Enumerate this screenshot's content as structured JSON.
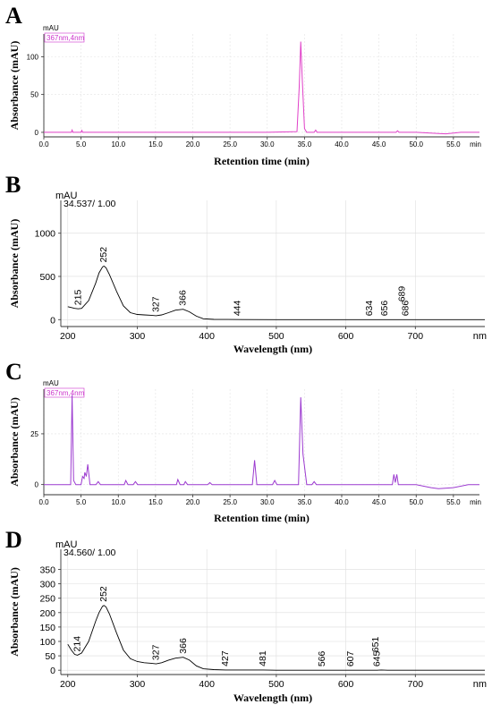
{
  "chart_data": [
    {
      "panel": "A",
      "type": "line",
      "xlabel": "Retention time (min)",
      "ylabel": "Absorbance (mAU)",
      "y_unit": "mAU",
      "x_unit": "min",
      "badge": "367nm,4nm",
      "xlim": [
        0,
        58.5
      ],
      "ylim": [
        -6,
        130
      ],
      "x_ticks": [
        0.0,
        5.0,
        10.0,
        15.0,
        20.0,
        25.0,
        30.0,
        35.0,
        40.0,
        45.0,
        50.0,
        55.0
      ],
      "x_tick_labels": [
        "0.0",
        "5.0",
        "10.0",
        "15.0",
        "20.0",
        "25.0",
        "30.0",
        "35.0",
        "40.0",
        "45.0",
        "50.0",
        "55.0"
      ],
      "y_ticks": [
        0,
        50,
        100
      ],
      "y_tick_labels": [
        "0",
        "50",
        "100"
      ],
      "color": "#e040c8",
      "series": [
        {
          "x": [
            0,
            3.7,
            3.8,
            3.9,
            5.0,
            5.1,
            5.2,
            10,
            20,
            30,
            34.0,
            34.3,
            34.5,
            34.7,
            35.0,
            35.3,
            36.3,
            36.5,
            36.7,
            40,
            47.3,
            47.5,
            47.7,
            50,
            53,
            54,
            55,
            56,
            58.5
          ],
          "y": [
            0,
            0,
            3,
            0,
            0,
            2.5,
            0,
            0,
            0,
            0,
            1,
            60,
            120,
            70,
            5,
            0,
            0,
            3,
            0,
            0,
            0,
            2,
            0,
            0,
            -1.5,
            -2,
            -1,
            0,
            0
          ]
        }
      ]
    },
    {
      "panel": "B",
      "type": "line",
      "xlabel": "Wavelength (nm)",
      "ylabel": "Absorbance (mAU)",
      "y_unit": "mAU",
      "x_unit": "nm",
      "header": "34.537/ 1.00",
      "xlim": [
        190,
        800
      ],
      "ylim": [
        -80,
        1380
      ],
      "x_ticks": [
        200,
        300,
        400,
        500,
        600,
        700
      ],
      "x_tick_labels": [
        "200",
        "300",
        "400",
        "500",
        "600",
        "700"
      ],
      "y_ticks": [
        0,
        500,
        1000
      ],
      "y_tick_labels": [
        "0",
        "500",
        "1000"
      ],
      "color": "#000000",
      "series": [
        {
          "x": [
            200,
            210,
            215,
            220,
            230,
            240,
            245,
            250,
            252,
            255,
            260,
            270,
            280,
            290,
            300,
            310,
            320,
            327,
            335,
            345,
            355,
            366,
            375,
            385,
            395,
            410,
            430,
            450,
            500,
            600,
            700,
            800
          ],
          "y": [
            150,
            130,
            125,
            130,
            220,
            420,
            540,
            610,
            620,
            600,
            520,
            330,
            160,
            80,
            60,
            55,
            50,
            45,
            55,
            80,
            110,
            120,
            90,
            40,
            10,
            3,
            2,
            1,
            0,
            0,
            0,
            0
          ]
        }
      ],
      "peak_labels": [
        {
          "x": 215,
          "text": "215"
        },
        {
          "x": 252,
          "text": "252"
        },
        {
          "x": 327,
          "text": "327"
        },
        {
          "x": 366,
          "text": "366"
        },
        {
          "x": 444,
          "text": "444"
        },
        {
          "x": 634,
          "text": "634"
        },
        {
          "x": 656,
          "text": "656"
        },
        {
          "x": 686,
          "text": "686"
        },
        {
          "x": 689,
          "text": "689"
        }
      ]
    },
    {
      "panel": "C",
      "type": "line",
      "xlabel": "Retention time (min)",
      "ylabel": "Absorbance (mAU)",
      "y_unit": "mAU",
      "x_unit": "min",
      "badge": "367nm,4nm",
      "xlim": [
        0,
        58.5
      ],
      "ylim": [
        -5,
        47
      ],
      "x_ticks": [
        0.0,
        5.0,
        10.0,
        15.0,
        20.0,
        25.0,
        30.0,
        35.0,
        40.0,
        45.0,
        50.0,
        55.0
      ],
      "x_tick_labels": [
        "0.0",
        "5.0",
        "10.0",
        "15.0",
        "20.0",
        "25.0",
        "30.0",
        "35.0",
        "40.0",
        "45.0",
        "50.0",
        "55.0"
      ],
      "y_ticks": [
        0,
        25
      ],
      "y_tick_labels": [
        "0",
        "25"
      ],
      "color": "#9c3ad0",
      "series": [
        {
          "x": [
            0,
            3.6,
            3.8,
            4.0,
            4.3,
            5.0,
            5.2,
            5.4,
            5.5,
            5.7,
            5.9,
            6.2,
            7.0,
            7.3,
            7.6,
            10.8,
            11.0,
            11.3,
            12.0,
            12.3,
            12.6,
            17.8,
            18.0,
            18.3,
            18.8,
            19.0,
            19.3,
            22.0,
            22.3,
            22.6,
            28.0,
            28.3,
            28.6,
            30.7,
            31.0,
            31.3,
            34.2,
            34.5,
            34.8,
            35.3,
            36.0,
            36.3,
            36.6,
            40,
            46.8,
            47.0,
            47.2,
            47.4,
            47.6,
            48.0,
            50,
            52,
            53,
            55,
            57,
            58.5
          ],
          "y": [
            0,
            0,
            44,
            2,
            0,
            0,
            4,
            3,
            6,
            4,
            10,
            0,
            0,
            1.5,
            0,
            0,
            2,
            0,
            0,
            1.5,
            0,
            0,
            2.5,
            0,
            0,
            1.5,
            0,
            0,
            1,
            0,
            0,
            12,
            0,
            0,
            2,
            0,
            0,
            43,
            15,
            0,
            0,
            1.5,
            0,
            0,
            0,
            5,
            1,
            5,
            0,
            0,
            0,
            -1.5,
            -2,
            -1.5,
            0,
            0
          ]
        }
      ]
    },
    {
      "panel": "D",
      "type": "line",
      "xlabel": "Wavelength (nm)",
      "ylabel": "Absorbance (mAU)",
      "y_unit": "mAU",
      "x_unit": "nm",
      "header": "34.560/ 1.00",
      "xlim": [
        190,
        800
      ],
      "ylim": [
        -15,
        420
      ],
      "x_ticks": [
        200,
        300,
        400,
        500,
        600,
        700
      ],
      "x_tick_labels": [
        "200",
        "300",
        "400",
        "500",
        "600",
        "700"
      ],
      "y_ticks": [
        0,
        50,
        100,
        150,
        200,
        250,
        300,
        350
      ],
      "y_tick_labels": [
        "0",
        "50",
        "100",
        "150",
        "200",
        "250",
        "300",
        "350"
      ],
      "color": "#000000",
      "series": [
        {
          "x": [
            200,
            205,
            210,
            214,
            220,
            230,
            240,
            245,
            250,
            252,
            255,
            260,
            270,
            280,
            290,
            300,
            310,
            320,
            327,
            335,
            345,
            355,
            366,
            375,
            385,
            395,
            410,
            427,
            450,
            481,
            500,
            566,
            600,
            607,
            640,
            645,
            651,
            660,
            700,
            800
          ],
          "y": [
            90,
            70,
            55,
            52,
            60,
            100,
            170,
            200,
            222,
            225,
            220,
            195,
            130,
            70,
            40,
            30,
            26,
            24,
            22,
            26,
            35,
            42,
            45,
            35,
            15,
            5,
            2,
            1,
            1,
            1,
            0,
            0,
            0,
            0,
            0,
            0,
            1,
            0,
            0,
            0
          ]
        }
      ],
      "peak_labels": [
        {
          "x": 214,
          "text": "214"
        },
        {
          "x": 252,
          "text": "252"
        },
        {
          "x": 327,
          "text": "327"
        },
        {
          "x": 366,
          "text": "366"
        },
        {
          "x": 427,
          "text": "427"
        },
        {
          "x": 481,
          "text": "481"
        },
        {
          "x": 566,
          "text": "566"
        },
        {
          "x": 607,
          "text": "607"
        },
        {
          "x": 645,
          "text": "645"
        },
        {
          "x": 651,
          "text": "651"
        }
      ]
    }
  ]
}
